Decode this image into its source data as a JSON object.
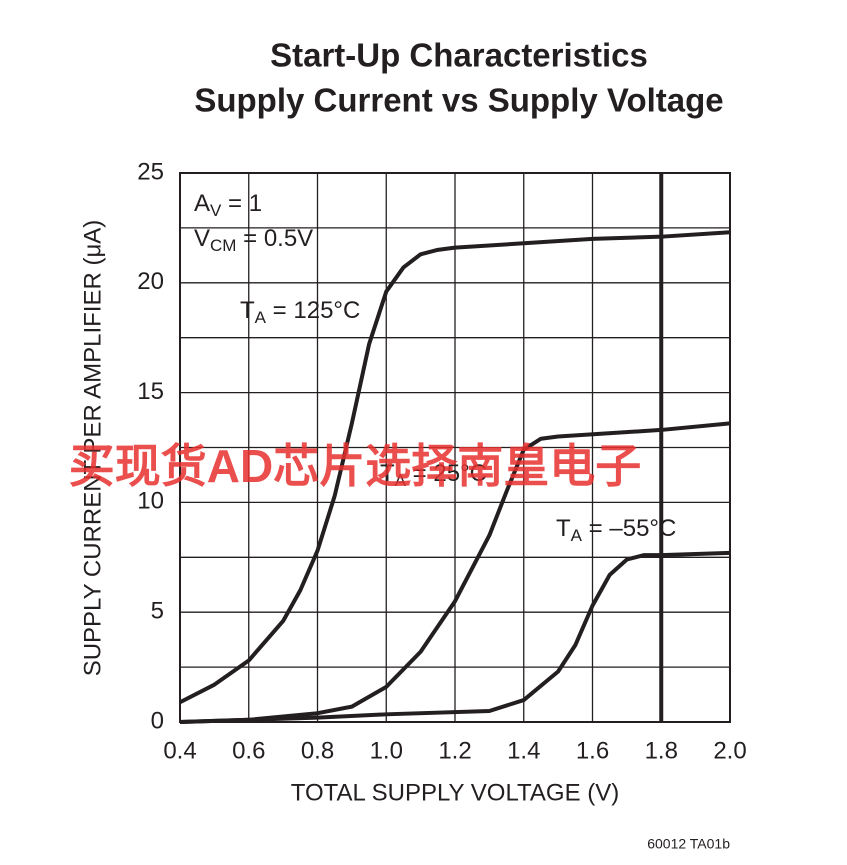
{
  "chart_data": {
    "type": "line",
    "title": "Start-Up Characteristics",
    "subtitle": "Supply Current vs Supply Voltage",
    "x_label": "TOTAL SUPPLY VOLTAGE (V)",
    "y_label": "SUPPLY CURRENT PER AMPLIFIER (μA)",
    "xlim": [
      0.4,
      2.0
    ],
    "ylim": [
      0,
      25
    ],
    "xticks": [
      0.4,
      0.6,
      0.8,
      {
        "value": 1.0,
        "label": "1.0"
      },
      1.2,
      1.4,
      1.6,
      1.8,
      {
        "value": 2.0,
        "label": "2.0"
      }
    ],
    "yticks": [
      0,
      5,
      10,
      15,
      20,
      25
    ],
    "yminor": [
      2.5,
      7.5,
      12.5,
      17.5,
      22.5
    ],
    "highlight_x": 1.8,
    "grid": true,
    "color": "#231f20",
    "annotations": [
      [
        "A",
        "V",
        " = 1"
      ],
      [
        "V",
        "CM",
        " = 0.5V"
      ]
    ],
    "series": [
      {
        "name": [
          "T",
          "A",
          " = 125°C"
        ],
        "color": "#231f20",
        "x": [
          0.4,
          0.5,
          0.6,
          0.7,
          0.75,
          0.8,
          0.85,
          0.9,
          0.95,
          1.0,
          1.05,
          1.1,
          1.15,
          1.2,
          1.4,
          1.6,
          1.8,
          2.0
        ],
        "values": [
          0.9,
          1.7,
          2.8,
          4.6,
          6.0,
          7.8,
          10.3,
          13.6,
          17.2,
          19.6,
          20.7,
          21.3,
          21.5,
          21.6,
          21.8,
          22.0,
          22.1,
          22.3
        ]
      },
      {
        "name": [
          "T",
          "A",
          " = 25°C"
        ],
        "color": "#231f20",
        "x": [
          0.4,
          0.6,
          0.8,
          0.9,
          1.0,
          1.1,
          1.2,
          1.3,
          1.35,
          1.4,
          1.45,
          1.5,
          1.8,
          2.0
        ],
        "values": [
          0.0,
          0.1,
          0.4,
          0.7,
          1.6,
          3.2,
          5.5,
          8.5,
          10.5,
          12.4,
          12.9,
          13.0,
          13.3,
          13.6
        ]
      },
      {
        "name": [
          "T",
          "A",
          " = –55°C"
        ],
        "color": "#231f20",
        "x": [
          0.4,
          0.8,
          1.0,
          1.3,
          1.4,
          1.5,
          1.55,
          1.6,
          1.65,
          1.7,
          1.75,
          1.8,
          2.0
        ],
        "values": [
          0.0,
          0.2,
          0.35,
          0.5,
          1.0,
          2.3,
          3.5,
          5.3,
          6.7,
          7.4,
          7.6,
          7.6,
          7.7
        ]
      }
    ]
  },
  "watermark": "买现货AD芯片选择南皇电子",
  "footer": "60012 TA01b"
}
